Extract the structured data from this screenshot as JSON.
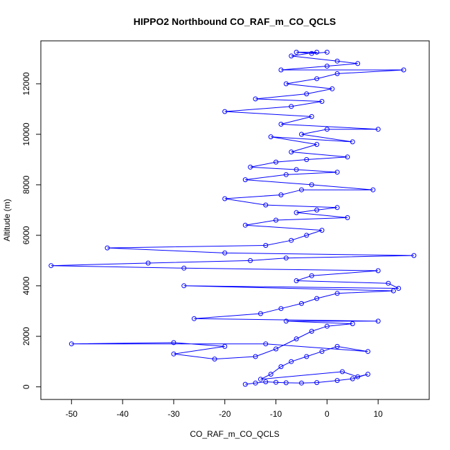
{
  "chart_data": {
    "type": "scatter",
    "title": "HIPPO2 Northbound CO_RAF_m_CO_QCLS",
    "xlabel": "CO_RAF_m_CO_QCLS",
    "ylabel": "Altitude (m)",
    "xlim": [
      -56,
      20
    ],
    "ylim": [
      -500,
      13700
    ],
    "xticks": [
      -50,
      -40,
      -30,
      -20,
      -10,
      0,
      10
    ],
    "yticks": [
      0,
      2000,
      4000,
      6000,
      8000,
      10000,
      12000
    ],
    "grid": false,
    "series": [
      {
        "name": "CO_RAF_m_CO_QCLS",
        "color": "#0000ff",
        "marker": "open-circle",
        "connected": true,
        "points": [
          [
            -16,
            100
          ],
          [
            -14,
            150
          ],
          [
            -12,
            200
          ],
          [
            -10,
            180
          ],
          [
            -8,
            160
          ],
          [
            -5,
            150
          ],
          [
            -2,
            170
          ],
          [
            2,
            250
          ],
          [
            5,
            320
          ],
          [
            8,
            500
          ],
          [
            6,
            400
          ],
          [
            3,
            600
          ],
          [
            -13,
            300
          ],
          [
            -11,
            500
          ],
          [
            -9,
            800
          ],
          [
            -7,
            1000
          ],
          [
            -4,
            1200
          ],
          [
            -1,
            1400
          ],
          [
            2,
            1600
          ],
          [
            8,
            1400
          ],
          [
            -12,
            1700
          ],
          [
            -50,
            1700
          ],
          [
            -30,
            1750
          ],
          [
            -20,
            1600
          ],
          [
            -30,
            1300
          ],
          [
            -22,
            1100
          ],
          [
            -14,
            1200
          ],
          [
            -10,
            1500
          ],
          [
            -6,
            1900
          ],
          [
            -3,
            2200
          ],
          [
            0,
            2400
          ],
          [
            5,
            2500
          ],
          [
            -8,
            2600
          ],
          [
            10,
            2600
          ],
          [
            -26,
            2700
          ],
          [
            -13,
            2900
          ],
          [
            -9,
            3100
          ],
          [
            -5,
            3300
          ],
          [
            -2,
            3500
          ],
          [
            2,
            3700
          ],
          [
            13,
            3800
          ],
          [
            -28,
            4000
          ],
          [
            14,
            3900
          ],
          [
            12,
            4100
          ],
          [
            -6,
            4200
          ],
          [
            -3,
            4400
          ],
          [
            10,
            4600
          ],
          [
            -28,
            4700
          ],
          [
            -54,
            4800
          ],
          [
            -35,
            4900
          ],
          [
            -15,
            5000
          ],
          [
            -8,
            5100
          ],
          [
            17,
            5200
          ],
          [
            -20,
            5300
          ],
          [
            -43,
            5500
          ],
          [
            -12,
            5600
          ],
          [
            -7,
            5800
          ],
          [
            -4,
            6000
          ],
          [
            -1,
            6200
          ],
          [
            -16,
            6400
          ],
          [
            -10,
            6600
          ],
          [
            4,
            6700
          ],
          [
            -6,
            6900
          ],
          [
            -2,
            7000
          ],
          [
            2,
            7100
          ],
          [
            -12,
            7200
          ],
          [
            -20,
            7450
          ],
          [
            -9,
            7600
          ],
          [
            -5,
            7800
          ],
          [
            9,
            7800
          ],
          [
            -3,
            8000
          ],
          [
            -16,
            8200
          ],
          [
            -8,
            8400
          ],
          [
            2,
            8500
          ],
          [
            -6,
            8600
          ],
          [
            -15,
            8700
          ],
          [
            -10,
            8900
          ],
          [
            -4,
            9000
          ],
          [
            4,
            9100
          ],
          [
            -7,
            9300
          ],
          [
            -2,
            9600
          ],
          [
            -11,
            9900
          ],
          [
            5,
            9700
          ],
          [
            -5,
            10000
          ],
          [
            0,
            10200
          ],
          [
            10,
            10200
          ],
          [
            -9,
            10400
          ],
          [
            -3,
            10700
          ],
          [
            -20,
            10900
          ],
          [
            -7,
            11100
          ],
          [
            -1,
            11300
          ],
          [
            -14,
            11400
          ],
          [
            -4,
            11600
          ],
          [
            1,
            11800
          ],
          [
            -8,
            12000
          ],
          [
            -2,
            12200
          ],
          [
            2,
            12400
          ],
          [
            15,
            12550
          ],
          [
            -9,
            12550
          ],
          [
            0,
            12700
          ],
          [
            6,
            12800
          ],
          [
            2,
            12900
          ],
          [
            -7,
            13100
          ],
          [
            -2,
            13250
          ],
          [
            -6,
            13250
          ],
          [
            -3,
            13200
          ],
          [
            0,
            13250
          ]
        ]
      }
    ]
  }
}
